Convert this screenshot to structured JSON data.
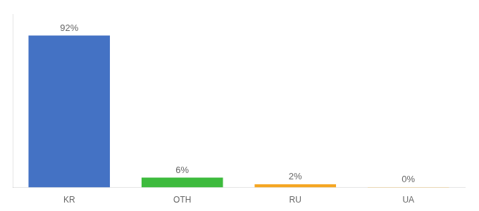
{
  "chart_data": {
    "type": "bar",
    "categories": [
      "KR",
      "OTH",
      "RU",
      "UA"
    ],
    "values": [
      92,
      6,
      2,
      0.3
    ],
    "value_labels": [
      "92%",
      "6%",
      "2%",
      "0%"
    ],
    "colors": [
      "#4472c4",
      "#3dbb3d",
      "#f5a623",
      "#f5a623"
    ],
    "ylim": [
      0,
      105
    ],
    "grid": false,
    "data_labels": true,
    "tick_labels": "x"
  }
}
